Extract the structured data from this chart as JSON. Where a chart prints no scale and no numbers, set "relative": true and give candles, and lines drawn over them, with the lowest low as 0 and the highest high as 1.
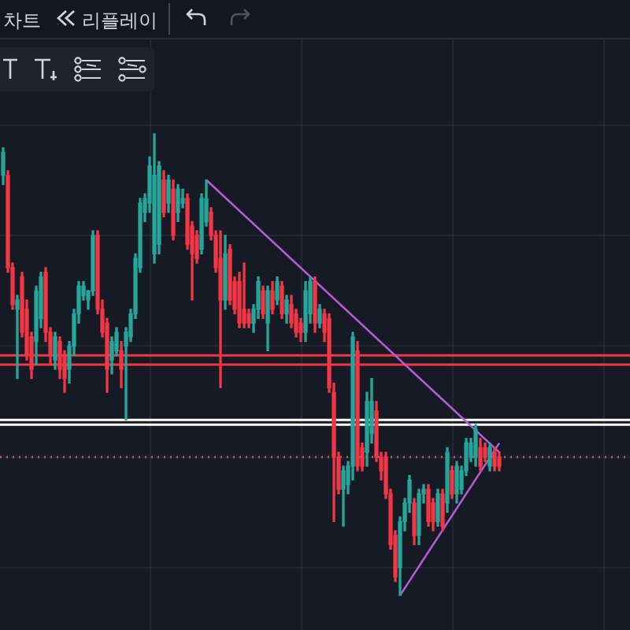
{
  "chart_data": {
    "type": "candlestick",
    "relative": true,
    "grid": true,
    "legend": false,
    "annotations": [
      "차트",
      "리플레이"
    ],
    "categories": [
      null,
      null,
      null,
      null,
      null,
      null,
      null,
      null,
      null,
      null,
      null,
      null,
      null,
      null,
      null,
      null,
      null,
      null,
      null,
      null,
      null,
      null,
      null,
      null,
      null,
      null,
      null,
      null,
      null,
      null,
      null,
      null,
      null,
      null,
      null,
      null,
      null,
      null,
      null,
      null,
      null,
      null,
      null,
      null,
      null,
      null,
      null,
      null,
      null,
      null,
      null,
      null,
      null,
      null,
      null,
      null,
      null,
      null,
      null,
      null,
      null,
      null,
      null,
      null,
      null,
      null,
      null,
      null,
      null,
      null,
      null,
      null,
      null,
      null,
      null,
      null,
      null,
      null,
      null,
      null,
      null,
      null,
      null,
      null,
      null,
      null,
      null,
      null,
      null,
      null,
      null,
      null,
      null,
      null,
      null,
      null,
      null,
      null,
      null,
      null,
      null,
      null,
      null,
      null,
      null,
      null
    ],
    "ohlc": [
      [
        0.91,
        0.97,
        0.89,
        0.96
      ],
      [
        0.91,
        0.92,
        0.7,
        0.71
      ],
      [
        0.71,
        0.72,
        0.62,
        0.63
      ],
      [
        0.62,
        0.65,
        0.47,
        0.64
      ],
      [
        0.69,
        0.7,
        0.56,
        0.57
      ],
      [
        0.62,
        0.64,
        0.51,
        0.52
      ],
      [
        0.56,
        0.57,
        0.47,
        0.49
      ],
      [
        0.55,
        0.67,
        0.5,
        0.66
      ],
      [
        0.6,
        0.7,
        0.58,
        0.69
      ],
      [
        0.7,
        0.71,
        0.55,
        0.57
      ],
      [
        0.57,
        0.58,
        0.5,
        0.52
      ],
      [
        0.51,
        0.57,
        0.49,
        0.56
      ],
      [
        0.55,
        0.56,
        0.47,
        0.49
      ],
      [
        0.52,
        0.53,
        0.44,
        0.47
      ],
      [
        0.49,
        0.55,
        0.46,
        0.54
      ],
      [
        0.54,
        0.62,
        0.52,
        0.61
      ],
      [
        0.61,
        0.68,
        0.59,
        0.67
      ],
      [
        0.65,
        0.68,
        0.64,
        0.67
      ],
      [
        0.64,
        0.66,
        0.62,
        0.66
      ],
      [
        0.66,
        0.79,
        0.65,
        0.78
      ],
      [
        0.78,
        0.79,
        0.61,
        0.62
      ],
      [
        0.62,
        0.64,
        0.56,
        0.57
      ],
      [
        0.59,
        0.6,
        0.44,
        0.49
      ],
      [
        0.51,
        0.56,
        0.48,
        0.55
      ],
      [
        0.53,
        0.58,
        0.52,
        0.57
      ],
      [
        0.53,
        0.55,
        0.45,
        0.49
      ],
      [
        0.54,
        0.58,
        0.38,
        0.57
      ],
      [
        0.56,
        0.62,
        0.55,
        0.61
      ],
      [
        0.61,
        0.74,
        0.6,
        0.73
      ],
      [
        0.71,
        0.86,
        0.7,
        0.85
      ],
      [
        0.83,
        0.87,
        0.81,
        0.86
      ],
      [
        0.85,
        0.95,
        0.83,
        0.93
      ],
      [
        0.74,
        1.0,
        0.72,
        0.91
      ],
      [
        0.76,
        0.94,
        0.74,
        0.93
      ],
      [
        0.9,
        0.92,
        0.82,
        0.83
      ],
      [
        0.85,
        0.91,
        0.83,
        0.9
      ],
      [
        0.88,
        0.9,
        0.77,
        0.78
      ],
      [
        0.83,
        0.89,
        0.81,
        0.88
      ],
      [
        0.85,
        0.88,
        0.84,
        0.86
      ],
      [
        0.86,
        0.87,
        0.75,
        0.76
      ],
      [
        0.8,
        0.81,
        0.64,
        0.74
      ],
      [
        0.78,
        0.79,
        0.72,
        0.73
      ],
      [
        0.75,
        0.87,
        0.74,
        0.86
      ],
      [
        0.81,
        0.9,
        0.8,
        0.86
      ],
      [
        0.83,
        0.84,
        0.77,
        0.78
      ],
      [
        0.78,
        0.79,
        0.7,
        0.71
      ],
      [
        0.73,
        0.79,
        0.45,
        0.64
      ],
      [
        0.64,
        0.78,
        0.62,
        0.74
      ],
      [
        0.75,
        0.76,
        0.63,
        0.64
      ],
      [
        0.68,
        0.69,
        0.61,
        0.62
      ],
      [
        0.68,
        0.7,
        0.58,
        0.59
      ],
      [
        0.62,
        0.72,
        0.58,
        0.59
      ],
      [
        0.61,
        0.62,
        0.58,
        0.59
      ],
      [
        0.59,
        0.63,
        0.57,
        0.62
      ],
      [
        0.62,
        0.69,
        0.6,
        0.68
      ],
      [
        0.66,
        0.67,
        0.6,
        0.61
      ],
      [
        0.59,
        0.67,
        0.53,
        0.66
      ],
      [
        0.66,
        0.68,
        0.61,
        0.62
      ],
      [
        0.64,
        0.69,
        0.63,
        0.68
      ],
      [
        0.67,
        0.68,
        0.6,
        0.61
      ],
      [
        0.61,
        0.65,
        0.59,
        0.64
      ],
      [
        0.63,
        0.65,
        0.58,
        0.59
      ],
      [
        0.61,
        0.62,
        0.56,
        0.57
      ],
      [
        0.59,
        0.6,
        0.55,
        0.57
      ],
      [
        0.57,
        0.68,
        0.55,
        0.66
      ],
      [
        0.61,
        0.69,
        0.59,
        0.68
      ],
      [
        0.68,
        0.69,
        0.57,
        0.59
      ],
      [
        0.59,
        0.63,
        0.58,
        0.62
      ],
      [
        0.61,
        0.62,
        0.55,
        0.57
      ],
      [
        0.6,
        0.61,
        0.44,
        0.45
      ],
      [
        0.44,
        0.46,
        0.16,
        0.3
      ],
      [
        0.3,
        0.31,
        0.22,
        0.23
      ],
      [
        0.23,
        0.28,
        0.15,
        0.27
      ],
      [
        0.24,
        0.29,
        0.22,
        0.28
      ],
      [
        0.28,
        0.57,
        0.25,
        0.56
      ],
      [
        0.53,
        0.55,
        0.27,
        0.28
      ],
      [
        0.32,
        0.33,
        0.27,
        0.28
      ],
      [
        0.31,
        0.44,
        0.28,
        0.42
      ],
      [
        0.35,
        0.47,
        0.33,
        0.42
      ],
      [
        0.4,
        0.42,
        0.29,
        0.3
      ],
      [
        0.3,
        0.31,
        0.25,
        0.27
      ],
      [
        0.3,
        0.31,
        0.21,
        0.22
      ],
      [
        0.22,
        0.23,
        0.1,
        0.11
      ],
      [
        0.13,
        0.14,
        0.03,
        0.04
      ],
      [
        0.06,
        0.17,
        0.0,
        0.16
      ],
      [
        0.16,
        0.21,
        0.14,
        0.2
      ],
      [
        0.2,
        0.26,
        0.18,
        0.25
      ],
      [
        0.2,
        0.21,
        0.11,
        0.13
      ],
      [
        0.13,
        0.23,
        0.11,
        0.22
      ],
      [
        0.22,
        0.24,
        0.2,
        0.23
      ],
      [
        0.23,
        0.24,
        0.15,
        0.16
      ],
      [
        0.2,
        0.21,
        0.14,
        0.16
      ],
      [
        0.16,
        0.23,
        0.15,
        0.22
      ],
      [
        0.22,
        0.23,
        0.14,
        0.15
      ],
      [
        0.2,
        0.32,
        0.18,
        0.31
      ],
      [
        0.27,
        0.28,
        0.21,
        0.22
      ],
      [
        0.22,
        0.29,
        0.2,
        0.28
      ],
      [
        0.23,
        0.28,
        0.22,
        0.27
      ],
      [
        0.27,
        0.34,
        0.26,
        0.33
      ],
      [
        0.3,
        0.34,
        0.29,
        0.33
      ],
      [
        0.3,
        0.37,
        0.28,
        0.36
      ],
      [
        0.32,
        0.34,
        0.27,
        0.28
      ],
      [
        0.32,
        0.33,
        0.29,
        0.3
      ],
      [
        0.28,
        0.33,
        0.27,
        0.32
      ],
      [
        0.31,
        0.32,
        0.27,
        0.28
      ],
      [
        0.3,
        0.31,
        0.27,
        0.28
      ]
    ],
    "colors": [
      "#26a69a",
      "#f23645",
      "#f23645",
      "#26a69a",
      "#f23645",
      "#f23645",
      "#f23645",
      "#26a69a",
      "#26a69a",
      "#f23645",
      "#f23645",
      "#26a69a",
      "#f23645",
      "#f23645",
      "#26a69a",
      "#26a69a",
      "#26a69a",
      "#26a69a",
      "#26a69a",
      "#26a69a",
      "#f23645",
      "#f23645",
      "#f23645",
      "#26a69a",
      "#26a69a",
      "#f23645",
      "#26a69a",
      "#26a69a",
      "#26a69a",
      "#26a69a",
      "#26a69a",
      "#26a69a",
      "#26a69a",
      "#26a69a",
      "#f23645",
      "#26a69a",
      "#f23645",
      "#26a69a",
      "#26a69a",
      "#f23645",
      "#f23645",
      "#f23645",
      "#26a69a",
      "#26a69a",
      "#f23645",
      "#f23645",
      "#f23645",
      "#26a69a",
      "#f23645",
      "#f23645",
      "#f23645",
      "#f23645",
      "#f23645",
      "#26a69a",
      "#26a69a",
      "#f23645",
      "#26a69a",
      "#f23645",
      "#26a69a",
      "#f23645",
      "#26a69a",
      "#f23645",
      "#f23645",
      "#f23645",
      "#26a69a",
      "#26a69a",
      "#f23645",
      "#26a69a",
      "#f23645",
      "#f23645",
      "#f23645",
      "#f23645",
      "#26a69a",
      "#26a69a",
      "#26a69a",
      "#f23645",
      "#f23645",
      "#26a69a",
      "#26a69a",
      "#f23645",
      "#f23645",
      "#f23645",
      "#f23645",
      "#f23645",
      "#26a69a",
      "#26a69a",
      "#26a69a",
      "#f23645",
      "#26a69a",
      "#26a69a",
      "#f23645",
      "#f23645",
      "#26a69a",
      "#f23645",
      "#26a69a",
      "#f23645",
      "#26a69a",
      "#26a69a",
      "#26a69a",
      "#26a69a",
      "#26a69a",
      "#f23645",
      "#f23645",
      "#26a69a",
      "#f23645",
      "#f23645"
    ],
    "series": [
      {
        "type": "line",
        "color": "#b45cd6",
        "values": [
          null,
          null,
          null,
          null,
          null,
          null,
          null,
          null,
          null,
          null,
          null,
          null,
          null,
          null,
          null,
          null,
          null,
          null,
          null,
          null,
          null,
          null,
          null,
          null,
          null,
          null,
          null,
          null,
          null,
          null,
          null,
          null,
          null,
          null,
          null,
          null,
          null,
          null,
          null,
          null,
          null,
          null,
          null,
          0.9,
          null,
          null,
          null,
          null,
          null,
          null,
          null,
          null,
          null,
          null,
          null,
          null,
          null,
          null,
          null,
          null,
          null,
          null,
          null,
          null,
          null,
          null,
          null,
          null,
          null,
          null,
          null,
          null,
          null,
          null,
          null,
          null,
          null,
          null,
          null,
          null,
          null,
          null,
          null,
          null,
          null,
          null,
          null,
          null,
          null,
          null,
          null,
          null,
          null,
          null,
          null,
          null,
          null,
          null,
          null,
          null,
          null,
          null,
          null,
          null,
          null,
          0.31
        ]
      },
      {
        "type": "line",
        "color": "#b45cd6",
        "values": [
          null,
          null,
          null,
          null,
          null,
          null,
          null,
          null,
          null,
          null,
          null,
          null,
          null,
          null,
          null,
          null,
          null,
          null,
          null,
          null,
          null,
          null,
          null,
          null,
          null,
          null,
          null,
          null,
          null,
          null,
          null,
          null,
          null,
          null,
          null,
          null,
          null,
          null,
          null,
          null,
          null,
          null,
          null,
          null,
          null,
          null,
          null,
          null,
          null,
          null,
          null,
          null,
          null,
          null,
          null,
          null,
          null,
          null,
          null,
          null,
          null,
          null,
          null,
          null,
          null,
          null,
          null,
          null,
          null,
          null,
          null,
          null,
          null,
          null,
          null,
          null,
          null,
          null,
          null,
          null,
          null,
          null,
          null,
          null,
          0.0,
          null,
          null,
          null,
          null,
          null,
          null,
          null,
          null,
          null,
          null,
          null,
          null,
          null,
          null,
          null,
          null,
          null,
          null,
          null,
          null,
          0.33
        ]
      }
    ],
    "ref_lines": [
      {
        "axis": "y",
        "value": 0.52,
        "color": "#f23645"
      },
      {
        "axis": "y",
        "value": 0.5,
        "color": "#f23645"
      },
      {
        "axis": "y",
        "value": 0.38,
        "color": "#ffffff"
      },
      {
        "axis": "y",
        "value": 0.37,
        "color": "#ffffff"
      },
      {
        "axis": "y",
        "value": 0.3,
        "color": "#b05a5a",
        "line_style": "dotted"
      }
    ]
  }
}
